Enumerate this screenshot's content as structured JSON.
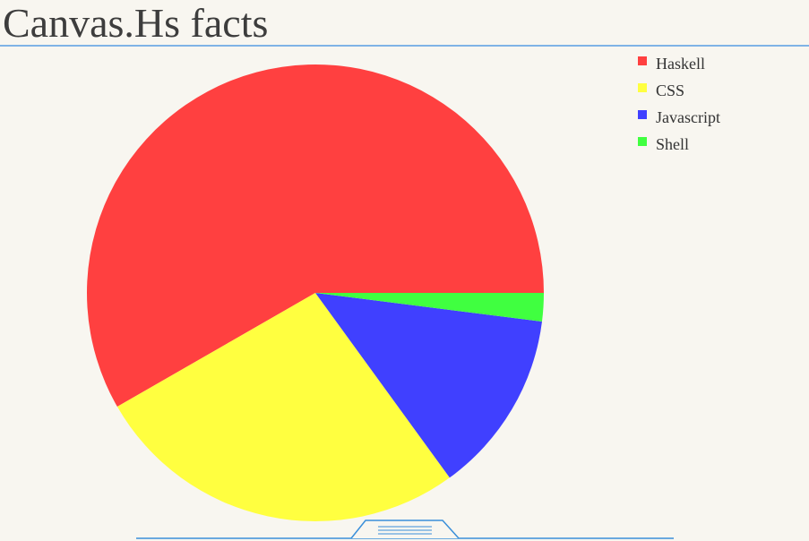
{
  "page": {
    "title": "Canvas.Hs facts"
  },
  "chart_data": {
    "type": "pie",
    "title": "",
    "categories": [
      "Haskell",
      "CSS",
      "Javascript",
      "Shell"
    ],
    "values": [
      58.3,
      26.7,
      13.0,
      2.0
    ],
    "colors": [
      "#ff4040",
      "#ffff40",
      "#4040ff",
      "#40ff40"
    ],
    "start_angle_deg": 0,
    "direction": "counterclockwise-from-right",
    "legend_position": "top-right",
    "grid": false
  },
  "bottom_bar": {
    "handle_icon": "menu-handle-icon",
    "line_color": "#3a8fd9"
  }
}
